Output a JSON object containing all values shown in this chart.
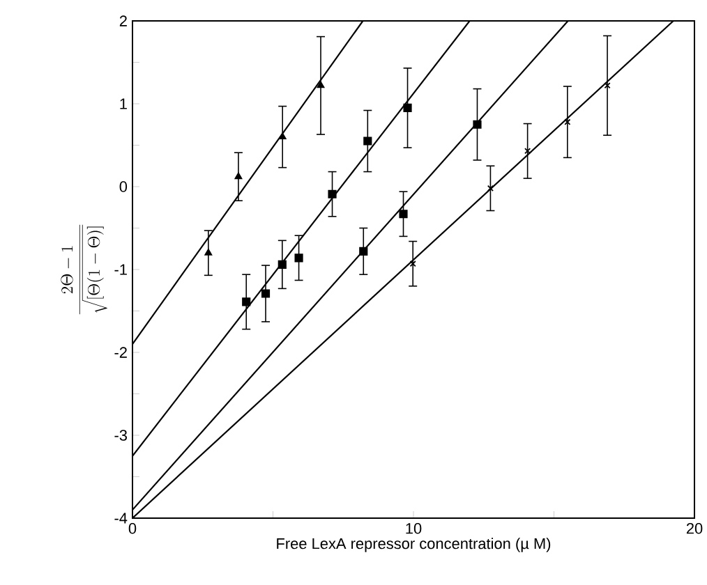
{
  "chart_data": {
    "type": "scatter",
    "xlabel": "Free LexA repressor concentration (µ M)",
    "ylabel": "\\frac{2\\Theta - 1}{\\sqrt{[\\Theta (1 - \\Theta)]}}",
    "xlim": [
      0,
      20
    ],
    "ylim": [
      -4,
      2
    ],
    "xticks": [
      0,
      {
        "value": 5,
        "label": null
      },
      10,
      {
        "value": 15,
        "label": null
      },
      20
    ],
    "yticks": [
      -4,
      {
        "value": -3.5,
        "label": null
      },
      -3,
      {
        "value": -2.5,
        "label": null
      },
      -2,
      {
        "value": -1.5,
        "label": null
      },
      -1,
      {
        "value": -0.5,
        "label": null
      },
      0,
      {
        "value": 0.5,
        "label": null
      },
      1,
      {
        "value": 1.5,
        "label": null
      },
      2
    ],
    "series": [
      {
        "marker": "triangle",
        "color": "#000000",
        "x": [
          2.7,
          3.77,
          5.34,
          6.7
        ],
        "values": [
          -0.8,
          0.12,
          0.6,
          1.22
        ],
        "errors": [
          0.27,
          0.29,
          0.37,
          0.59
        ]
      },
      {
        "marker": "square",
        "color": "#000000",
        "x": [
          4.05,
          4.74,
          5.33,
          5.92,
          7.11,
          8.37,
          9.79
        ],
        "values": [
          -1.39,
          -1.29,
          -0.94,
          -0.86,
          -0.09,
          0.55,
          0.95
        ],
        "errors": [
          0.33,
          0.34,
          0.29,
          0.27,
          0.27,
          0.37,
          0.48
        ]
      },
      {
        "marker": "square",
        "color": "#000000",
        "x": [
          8.22,
          9.64,
          12.27
        ],
        "values": [
          -0.78,
          -0.33,
          0.75
        ],
        "errors": [
          0.28,
          0.27,
          0.43
        ]
      },
      {
        "marker": "cross",
        "color": "#000000",
        "x": [
          9.98,
          12.74,
          14.06,
          15.48,
          16.9
        ],
        "values": [
          -0.93,
          -0.02,
          0.43,
          0.78,
          1.22
        ],
        "errors": [
          0.27,
          0.27,
          0.33,
          0.43,
          0.6
        ]
      },
      {
        "type": "line",
        "color": "#000000",
        "x": [
          0,
          8.2
        ],
        "values": [
          -1.9,
          2
        ]
      },
      {
        "type": "line",
        "color": "#000000",
        "x": [
          0,
          12.0
        ],
        "values": [
          -3.25,
          2
        ]
      },
      {
        "type": "line",
        "color": "#000000",
        "x": [
          0,
          15.5
        ],
        "values": [
          -3.9,
          2
        ]
      },
      {
        "type": "line",
        "color": "#000000",
        "x": [
          0,
          19.25
        ],
        "values": [
          -4.0,
          2
        ]
      }
    ]
  }
}
